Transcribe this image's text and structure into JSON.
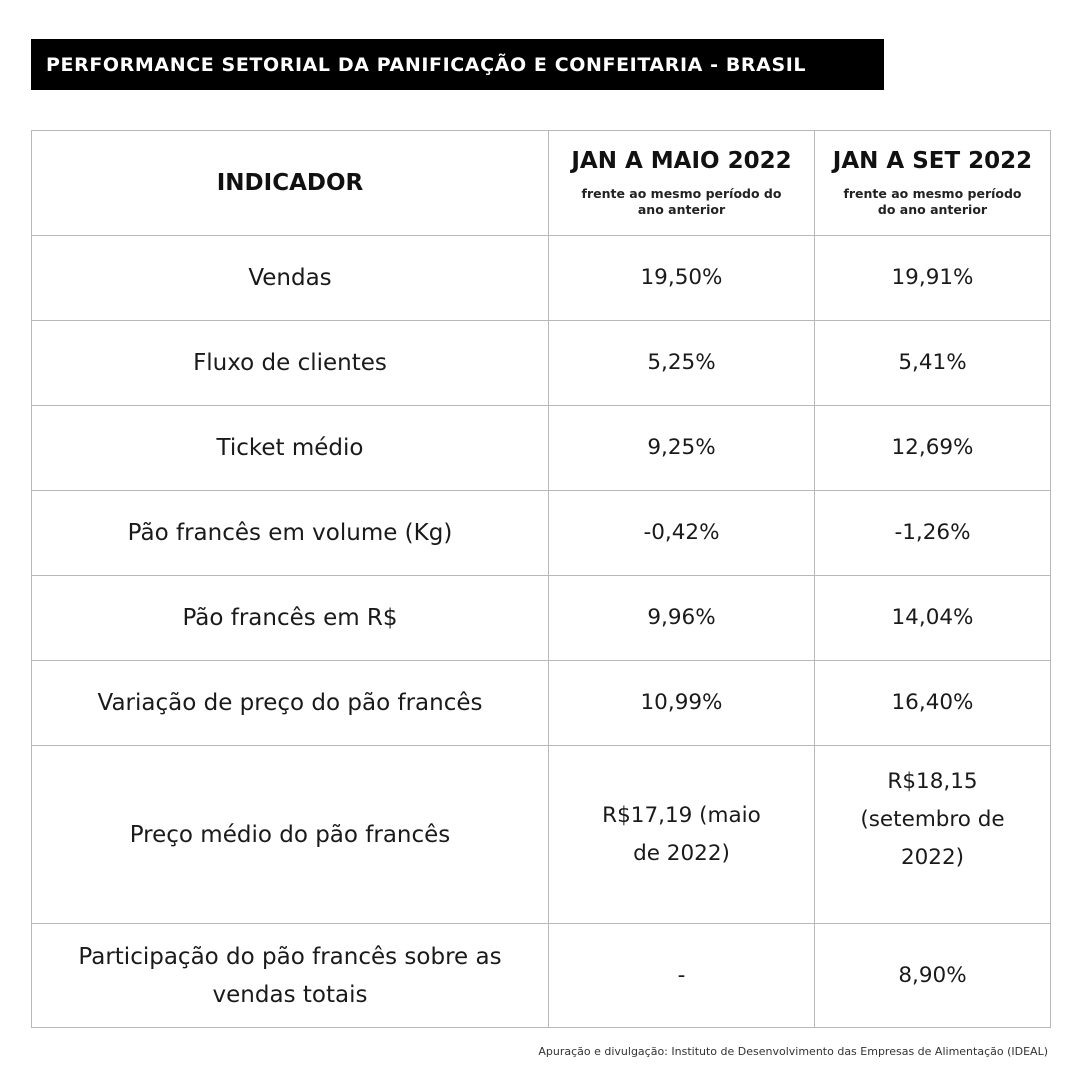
{
  "title": "PERFORMANCE SETORIAL DA PANIFICAÇÃO E CONFEITARIA - BRASIL",
  "table": {
    "header": {
      "indicator": "INDICADOR",
      "col1_period": "JAN A MAIO 2022",
      "col1_sub": "frente ao mesmo período do ano anterior",
      "col2_period": "JAN A SET 2022",
      "col2_sub": "frente ao mesmo período do ano anterior"
    },
    "rows": [
      {
        "label": "Vendas",
        "jan_maio": "19,50%",
        "jan_set": "19,91%"
      },
      {
        "label": "Fluxo de clientes",
        "jan_maio": "5,25%",
        "jan_set": "5,41%"
      },
      {
        "label": "Ticket médio",
        "jan_maio": "9,25%",
        "jan_set": "12,69%"
      },
      {
        "label": "Pão francês em volume (Kg)",
        "jan_maio": "-0,42%",
        "jan_set": "-1,26%"
      },
      {
        "label": "Pão francês em R$",
        "jan_maio": "9,96%",
        "jan_set": "14,04%"
      },
      {
        "label": "Variação de preço do pão francês",
        "jan_maio": "10,99%",
        "jan_set": "16,40%"
      },
      {
        "label": "Preço médio do pão francês",
        "jan_maio": "R$17,19 (maio de 2022)",
        "jan_set": "R$18,15 (setembro de 2022)"
      },
      {
        "label": "Participação do pão francês sobre as vendas totais",
        "jan_maio": "-",
        "jan_set": "8,90%"
      }
    ]
  },
  "footer": "Apuração e divulgação: Instituto de Desenvolvimento das Empresas de Alimentação (IDEAL)"
}
